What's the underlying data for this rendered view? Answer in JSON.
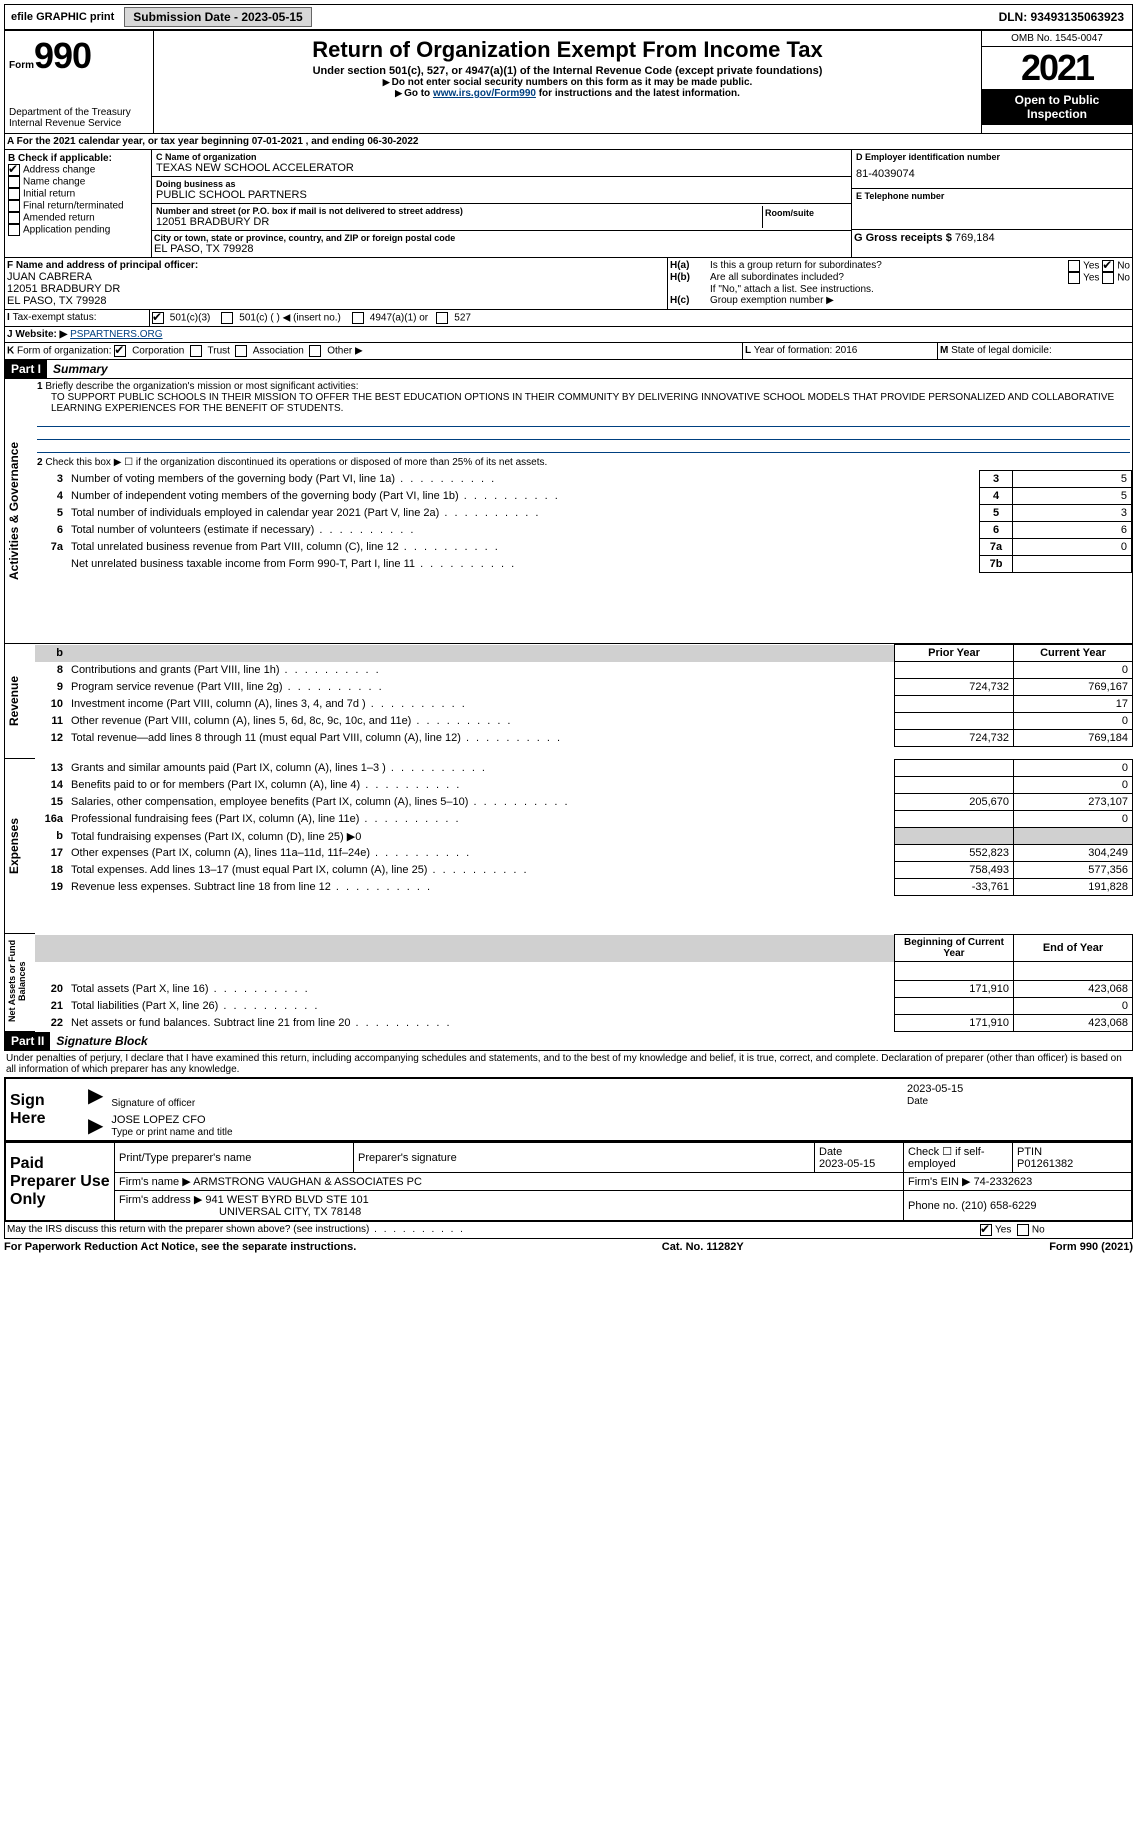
{
  "topbar": {
    "efile_label": "efile GRAPHIC print",
    "submission_btn": "Submission Date - 2023-05-15",
    "dln": "DLN: 93493135063923"
  },
  "header": {
    "form_prefix": "Form",
    "form_number": "990",
    "dept1": "Department of the Treasury",
    "dept2": "Internal Revenue Service",
    "title": "Return of Organization Exempt From Income Tax",
    "subtitle": "Under section 501(c), 527, or 4947(a)(1) of the Internal Revenue Code (except private foundations)",
    "note1": "Do not enter social security numbers on this form as it may be made public.",
    "note2_pre": "Go to ",
    "note2_link": "www.irs.gov/Form990",
    "note2_post": " for instructions and the latest information.",
    "omb": "OMB No. 1545-0047",
    "year": "2021",
    "open": "Open to Public Inspection"
  },
  "A": {
    "line": "For the 2021 calendar year, or tax year beginning 07-01-2021    , and ending 06-30-2022"
  },
  "B": {
    "label": "Check if applicable:",
    "items": [
      "Address change",
      "Name change",
      "Initial return",
      "Final return/terminated",
      "Amended return",
      "Application pending"
    ],
    "checked": [
      true,
      false,
      false,
      false,
      false,
      false
    ]
  },
  "C": {
    "name_label": "C Name of organization",
    "name": "TEXAS NEW SCHOOL ACCELERATOR",
    "dba_label": "Doing business as",
    "dba": "PUBLIC SCHOOL PARTNERS",
    "street_label": "Number and street (or P.O. box if mail is not delivered to street address)",
    "room_label": "Room/suite",
    "street": "12051 BRADBURY DR",
    "city_label": "City or town, state or province, country, and ZIP or foreign postal code",
    "city": "EL PASO, TX  79928"
  },
  "D": {
    "label": "D Employer identification number",
    "val": "81-4039074"
  },
  "E": {
    "label": "E Telephone number",
    "val": ""
  },
  "G": {
    "label": "G Gross receipts $",
    "val": "769,184"
  },
  "F": {
    "label": "F  Name and address of principal officer:",
    "name": "JUAN CABRERA",
    "street": "12051 BRADBURY DR",
    "city": "EL PASO, TX  79928"
  },
  "H": {
    "a_label": "Is this a group return for subordinates?",
    "a_yes": "Yes",
    "a_no": "No",
    "b_label": "Are all subordinates included?",
    "b_yes": "Yes",
    "b_no": "No",
    "b_note": "If \"No,\" attach a list. See instructions.",
    "c_label": "Group exemption number ▶"
  },
  "I": {
    "label": "Tax-exempt status:",
    "opts": [
      "501(c)(3)",
      "501(c) (   ) ◀ (insert no.)",
      "4947(a)(1) or",
      "527"
    ]
  },
  "J": {
    "label": "Website: ▶",
    "val": "PSPARTNERS.ORG"
  },
  "K": {
    "label": "Form of organization:",
    "opts": [
      "Corporation",
      "Trust",
      "Association",
      "Other ▶"
    ]
  },
  "L": {
    "label": "Year of formation:",
    "val": "2016"
  },
  "M": {
    "label": "State of legal domicile:",
    "val": ""
  },
  "partI": {
    "header": "Part I",
    "title": "Summary"
  },
  "summary": {
    "line1_label": "Briefly describe the organization's mission or most significant activities:",
    "line1_text": "TO SUPPORT PUBLIC SCHOOLS IN THEIR MISSION TO OFFER THE BEST EDUCATION OPTIONS IN THEIR COMMUNITY BY DELIVERING INNOVATIVE SCHOOL MODELS THAT PROVIDE PERSONALIZED AND COLLABORATIVE LEARNING EXPERIENCES FOR THE BENEFIT OF STUDENTS.",
    "line2": "Check this box ▶ ☐ if the organization discontinued its operations or disposed of more than 25% of its net assets.",
    "rows_gov": [
      {
        "n": "3",
        "d": "Number of voting members of the governing body (Part VI, line 1a)",
        "box": "3",
        "v": "5"
      },
      {
        "n": "4",
        "d": "Number of independent voting members of the governing body (Part VI, line 1b)",
        "box": "4",
        "v": "5"
      },
      {
        "n": "5",
        "d": "Total number of individuals employed in calendar year 2021 (Part V, line 2a)",
        "box": "5",
        "v": "3"
      },
      {
        "n": "6",
        "d": "Total number of volunteers (estimate if necessary)",
        "box": "6",
        "v": "6"
      },
      {
        "n": "7a",
        "d": "Total unrelated business revenue from Part VIII, column (C), line 12",
        "box": "7a",
        "v": "0"
      },
      {
        "n": "",
        "d": "Net unrelated business taxable income from Form 990-T, Part I, line 11",
        "box": "7b",
        "v": ""
      }
    ],
    "col_prior": "Prior Year",
    "col_current": "Current Year",
    "rows_rev": [
      {
        "n": "8",
        "d": "Contributions and grants (Part VIII, line 1h)",
        "p": "",
        "c": "0"
      },
      {
        "n": "9",
        "d": "Program service revenue (Part VIII, line 2g)",
        "p": "724,732",
        "c": "769,167"
      },
      {
        "n": "10",
        "d": "Investment income (Part VIII, column (A), lines 3, 4, and 7d )",
        "p": "",
        "c": "17"
      },
      {
        "n": "11",
        "d": "Other revenue (Part VIII, column (A), lines 5, 6d, 8c, 9c, 10c, and 11e)",
        "p": "",
        "c": "0"
      },
      {
        "n": "12",
        "d": "Total revenue—add lines 8 through 11 (must equal Part VIII, column (A), line 12)",
        "p": "724,732",
        "c": "769,184"
      }
    ],
    "rows_exp": [
      {
        "n": "13",
        "d": "Grants and similar amounts paid (Part IX, column (A), lines 1–3 )",
        "p": "",
        "c": "0"
      },
      {
        "n": "14",
        "d": "Benefits paid to or for members (Part IX, column (A), line 4)",
        "p": "",
        "c": "0"
      },
      {
        "n": "15",
        "d": "Salaries, other compensation, employee benefits (Part IX, column (A), lines 5–10)",
        "p": "205,670",
        "c": "273,107"
      },
      {
        "n": "16a",
        "d": "Professional fundraising fees (Part IX, column (A), line 11e)",
        "p": "",
        "c": "0"
      },
      {
        "n": "b",
        "d": "Total fundraising expenses (Part IX, column (D), line 25) ▶0",
        "p": "shade",
        "c": "shade"
      },
      {
        "n": "17",
        "d": "Other expenses (Part IX, column (A), lines 11a–11d, 11f–24e)",
        "p": "552,823",
        "c": "304,249"
      },
      {
        "n": "18",
        "d": "Total expenses. Add lines 13–17 (must equal Part IX, column (A), line 25)",
        "p": "758,493",
        "c": "577,356"
      },
      {
        "n": "19",
        "d": "Revenue less expenses. Subtract line 18 from line 12",
        "p": "-33,761",
        "c": "191,828"
      }
    ],
    "col_begin": "Beginning of Current Year",
    "col_end": "End of Year",
    "rows_net": [
      {
        "n": "20",
        "d": "Total assets (Part X, line 16)",
        "p": "171,910",
        "c": "423,068"
      },
      {
        "n": "21",
        "d": "Total liabilities (Part X, line 26)",
        "p": "",
        "c": "0"
      },
      {
        "n": "22",
        "d": "Net assets or fund balances. Subtract line 21 from line 20",
        "p": "171,910",
        "c": "423,068"
      }
    ],
    "side_gov": "Activities & Governance",
    "side_rev": "Revenue",
    "side_exp": "Expenses",
    "side_net": "Net Assets or Fund Balances"
  },
  "partII": {
    "header": "Part II",
    "title": "Signature Block",
    "decl": "Under penalties of perjury, I declare that I have examined this return, including accompanying schedules and statements, and to the best of my knowledge and belief, it is true, correct, and complete. Declaration of preparer (other than officer) is based on all information of which preparer has any knowledge."
  },
  "sign": {
    "here": "Sign Here",
    "sig_label": "Signature of officer",
    "date_label": "Date",
    "date": "2023-05-15",
    "name": "JOSE LOPEZ  CFO",
    "name_label": "Type or print name and title"
  },
  "paid": {
    "label": "Paid Preparer Use Only",
    "h_name": "Print/Type preparer's name",
    "h_sig": "Preparer's signature",
    "h_date": "Date",
    "date": "2023-05-15",
    "h_check": "Check ☐ if self-employed",
    "h_ptin": "PTIN",
    "ptin": "P01261382",
    "firm_name_l": "Firm's name    ▶",
    "firm_name": "ARMSTRONG VAUGHAN & ASSOCIATES PC",
    "firm_ein_l": "Firm's EIN ▶",
    "firm_ein": "74-2332623",
    "firm_addr_l": "Firm's address ▶",
    "firm_addr1": "941 WEST BYRD BLVD STE 101",
    "firm_addr2": "UNIVERSAL CITY, TX  78148",
    "phone_l": "Phone no.",
    "phone": "(210) 658-6229"
  },
  "may_irs": "May the IRS discuss this return with the preparer shown above? (see instructions)",
  "may_yes": "Yes",
  "may_no": "No",
  "footer": {
    "l": "For Paperwork Reduction Act Notice, see the separate instructions.",
    "m": "Cat. No. 11282Y",
    "r": "Form 990 (2021)"
  }
}
